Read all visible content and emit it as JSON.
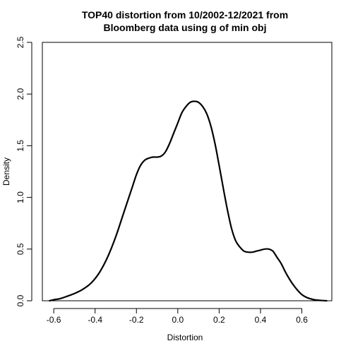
{
  "chart_data": {
    "type": "line",
    "title_lines": [
      "TOP40 distortion from 10/2002-12/2021 from",
      "Bloomberg data using g of min obj"
    ],
    "xlabel": "Distortion",
    "ylabel": "Density",
    "xlim": [
      -0.655,
      0.745
    ],
    "ylim": [
      0,
      2.5
    ],
    "x_ticks": [
      -0.6,
      -0.4,
      -0.2,
      0.0,
      0.2,
      0.4,
      0.6
    ],
    "x_tick_labels": [
      "-0.6",
      "-0.4",
      "-0.2",
      "0.0",
      "0.2",
      "0.4",
      "0.6"
    ],
    "y_ticks": [
      0.0,
      0.5,
      1.0,
      1.5,
      2.0,
      2.5
    ],
    "y_tick_labels": [
      "0.0",
      "0.5",
      "1.0",
      "1.5",
      "2.0",
      "2.5"
    ],
    "grid": false,
    "legend": "none",
    "line_color": "#000000",
    "series": [
      {
        "x": [
          -0.62,
          -0.6,
          -0.57,
          -0.54,
          -0.5,
          -0.46,
          -0.42,
          -0.38,
          -0.34,
          -0.3,
          -0.26,
          -0.22,
          -0.2,
          -0.18,
          -0.16,
          -0.14,
          -0.12,
          -0.1,
          -0.08,
          -0.06,
          -0.04,
          -0.02,
          0.0,
          0.02,
          0.04,
          0.06,
          0.08,
          0.1,
          0.12,
          0.14,
          0.16,
          0.18,
          0.2,
          0.22,
          0.24,
          0.26,
          0.28,
          0.3,
          0.32,
          0.34,
          0.36,
          0.38,
          0.4,
          0.42,
          0.44,
          0.46,
          0.48,
          0.5,
          0.52,
          0.54,
          0.56,
          0.58,
          0.6,
          0.62,
          0.64,
          0.66,
          0.68,
          0.7,
          0.72
        ],
        "y": [
          0.0,
          0.01,
          0.02,
          0.04,
          0.07,
          0.11,
          0.17,
          0.27,
          0.42,
          0.62,
          0.86,
          1.1,
          1.22,
          1.31,
          1.36,
          1.38,
          1.39,
          1.39,
          1.4,
          1.44,
          1.52,
          1.62,
          1.72,
          1.82,
          1.88,
          1.92,
          1.93,
          1.92,
          1.88,
          1.81,
          1.69,
          1.52,
          1.31,
          1.09,
          0.88,
          0.7,
          0.58,
          0.52,
          0.48,
          0.47,
          0.47,
          0.48,
          0.49,
          0.5,
          0.5,
          0.48,
          0.42,
          0.36,
          0.28,
          0.21,
          0.15,
          0.1,
          0.06,
          0.035,
          0.02,
          0.01,
          0.005,
          0.002,
          0.0
        ]
      }
    ]
  }
}
